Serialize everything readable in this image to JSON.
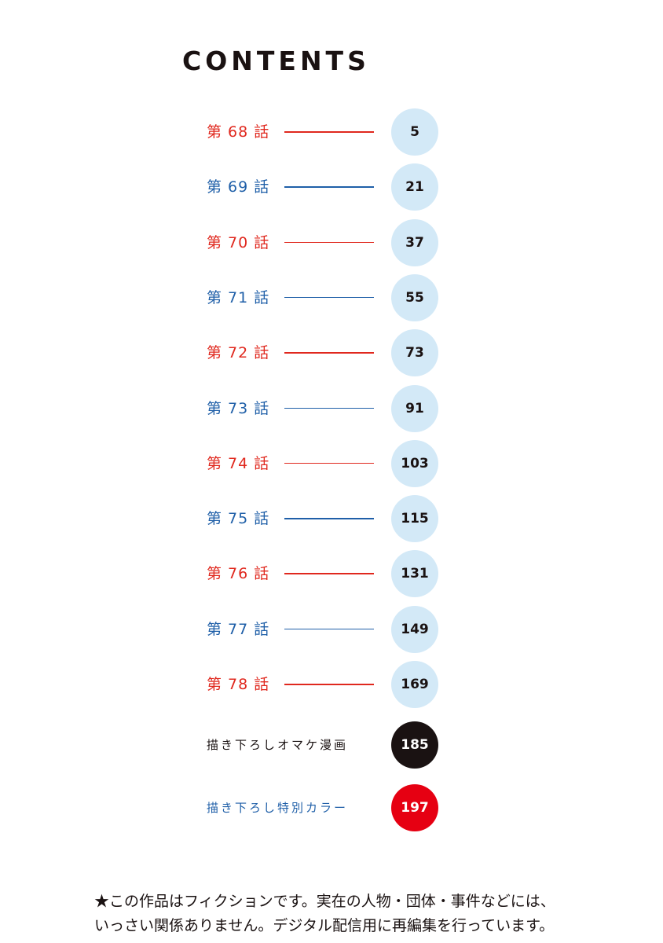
{
  "title": "CONTENTS",
  "colors": {
    "red": "#e0281e",
    "blue": "#1f5fa8",
    "circle": "#d3e9f7",
    "black_circle": "#1a1212",
    "red_circle": "#e60012"
  },
  "entries": [
    {
      "label": "第 68 話",
      "page": "5",
      "color": "red"
    },
    {
      "label": "第 69 話",
      "page": "21",
      "color": "blue"
    },
    {
      "label": "第 70 話",
      "page": "37",
      "color": "red"
    },
    {
      "label": "第 71 話",
      "page": "55",
      "color": "blue"
    },
    {
      "label": "第 72 話",
      "page": "73",
      "color": "red"
    },
    {
      "label": "第 73 話",
      "page": "91",
      "color": "blue"
    },
    {
      "label": "第 74 話",
      "page": "103",
      "color": "red"
    },
    {
      "label": "第 75 話",
      "page": "115",
      "color": "blue"
    },
    {
      "label": "第 76 話",
      "page": "131",
      "color": "red"
    },
    {
      "label": "第 77 話",
      "page": "149",
      "color": "blue"
    },
    {
      "label": "第 78 話",
      "page": "169",
      "color": "red"
    }
  ],
  "extras": [
    {
      "label": "描き下ろしオマケ漫画",
      "page": "185",
      "text_color": "#1a1212",
      "circle_color": "#1a1212"
    },
    {
      "label": "描き下ろし特別カラー",
      "page": "197",
      "text_color": "#1f5fa8",
      "circle_color": "#e60012"
    }
  ],
  "note": {
    "line1": "★この作品はフィクションです。実在の人物・団体・事件などには、",
    "line2": "いっさい関係ありません。デジタル配信用に再編集を行っています。"
  }
}
